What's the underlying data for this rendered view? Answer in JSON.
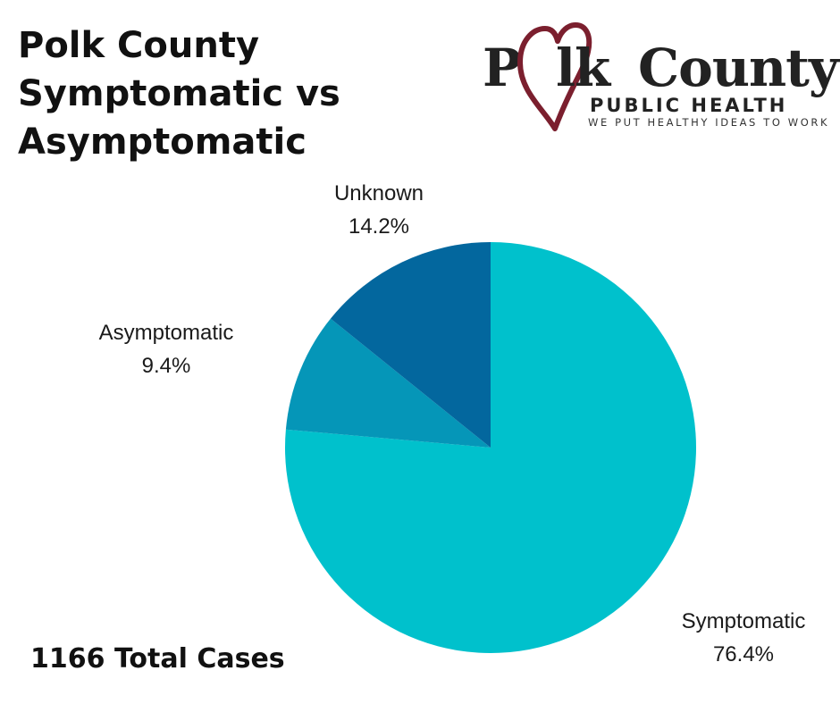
{
  "title": {
    "line1": "Polk County",
    "line2": "Symptomatic vs",
    "line3": "Asymptomatic"
  },
  "logo": {
    "word_p": "P",
    "word_lk": "lk",
    "word_county": "County",
    "subtitle": "PUBLIC HEALTH",
    "tagline": "WE PUT HEALTHY IDEAS TO WORK",
    "heart_icon": "heart-icon",
    "heart_color": "#7b1f2e"
  },
  "total_cases": "1166 Total Cases",
  "chart_data": {
    "type": "pie",
    "start_angle_deg": 0,
    "direction": "clockwise",
    "slices": [
      {
        "label": "Symptomatic",
        "value": 76.4,
        "value_label": "76.4%",
        "color": "#00c1cc"
      },
      {
        "label": "Asymptomatic",
        "value": 9.4,
        "value_label": "9.4%",
        "color": "#0596b8"
      },
      {
        "label": "Unknown",
        "value": 14.2,
        "value_label": "14.2%",
        "color": "#03679e"
      }
    ]
  }
}
